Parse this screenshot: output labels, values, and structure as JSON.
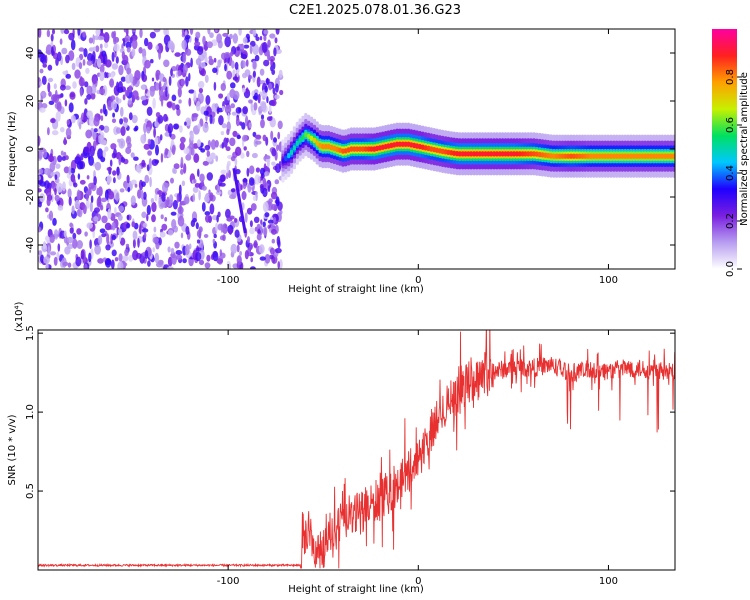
{
  "title": "C2E1.2025.078.01.36.G23",
  "chart_data": [
    {
      "type": "heatmap",
      "xlabel": "Height of straight line (km)",
      "ylabel": "Frequency (Hz)",
      "xlim": [
        -200,
        135
      ],
      "ylim": [
        -50,
        50
      ],
      "x_ticks": [
        -100,
        0,
        100
      ],
      "x_tick_labels": [
        "-100",
        "0",
        "100"
      ],
      "y_ticks": [
        -40,
        -20,
        0,
        20,
        40
      ],
      "y_tick_labels": [
        "-40",
        "-20",
        "0",
        "20",
        "40"
      ],
      "colorbar": {
        "label": "Normalized spectral amplitude",
        "range": [
          0,
          1
        ],
        "ticks": [
          0.0,
          0.2,
          0.4,
          0.6,
          0.8
        ],
        "tick_labels": [
          "0.0",
          "0.2",
          "0.4",
          "0.6",
          "0.8"
        ],
        "colormap": [
          "#ffffff",
          "#b79df0",
          "#7a1fe0",
          "#1f00ff",
          "#00c8ff",
          "#00e060",
          "#c8f000",
          "#ffa000",
          "#ff2020",
          "#ff00a0"
        ]
      },
      "noise_region_x": [
        -200,
        -72
      ],
      "signal_trace": {
        "x": [
          -72,
          -68,
          -64,
          -60,
          -56,
          -52,
          -48,
          -44,
          -40,
          -36,
          -30,
          -24,
          -18,
          -12,
          -6,
          0,
          6,
          12,
          20,
          30,
          40,
          50,
          60,
          70,
          80,
          90,
          100,
          110,
          120,
          135
        ],
        "y": [
          -5,
          -2,
          3,
          6,
          4,
          1,
          1,
          0,
          -1,
          0,
          0,
          0,
          1,
          2,
          2,
          1,
          0,
          -1,
          -2,
          -2,
          -2,
          -2,
          -2,
          -3,
          -3,
          -3,
          -3,
          -3,
          -3,
          -3
        ],
        "peak_amplitude": [
          0.3,
          0.5,
          0.5,
          0.6,
          0.7,
          0.8,
          0.8,
          0.8,
          0.85,
          0.85,
          0.85,
          0.9,
          0.9,
          0.9,
          0.9,
          0.9,
          0.85,
          0.85,
          0.9,
          0.9,
          0.9,
          0.9,
          0.85,
          0.8,
          0.85,
          0.8,
          0.8,
          0.8,
          0.8,
          0.8
        ]
      }
    },
    {
      "type": "line",
      "xlabel": "Height of straight line (km)",
      "ylabel": "SNR (10 * v/v)",
      "y_scale_label": "(x10⁴)",
      "xlim": [
        -200,
        135
      ],
      "ylim": [
        0,
        1.52
      ],
      "x_ticks": [
        -100,
        0,
        100
      ],
      "x_tick_labels": [
        "-100",
        "0",
        "100"
      ],
      "y_ticks": [
        0.5,
        1.0,
        1.5
      ],
      "y_tick_labels": [
        "0.5",
        "1.0",
        "1.5"
      ],
      "series": [
        {
          "color": "#e83030",
          "x": [
            -200,
            -150,
            -100,
            -70,
            -62,
            -58,
            -55,
            -50,
            -45,
            -40,
            -35,
            -30,
            -25,
            -20,
            -15,
            -10,
            -5,
            0,
            5,
            10,
            15,
            20,
            25,
            30,
            35,
            40,
            50,
            60,
            70,
            80,
            90,
            100,
            110,
            120,
            135
          ],
          "y": [
            0.03,
            0.03,
            0.03,
            0.03,
            0.03,
            0.25,
            0.12,
            0.15,
            0.25,
            0.28,
            0.33,
            0.38,
            0.4,
            0.45,
            0.5,
            0.55,
            0.62,
            0.72,
            0.82,
            0.95,
            1.05,
            1.12,
            1.18,
            1.22,
            1.25,
            1.26,
            1.28,
            1.28,
            1.3,
            1.25,
            1.27,
            1.26,
            1.28,
            1.27,
            1.25
          ]
        }
      ]
    }
  ]
}
